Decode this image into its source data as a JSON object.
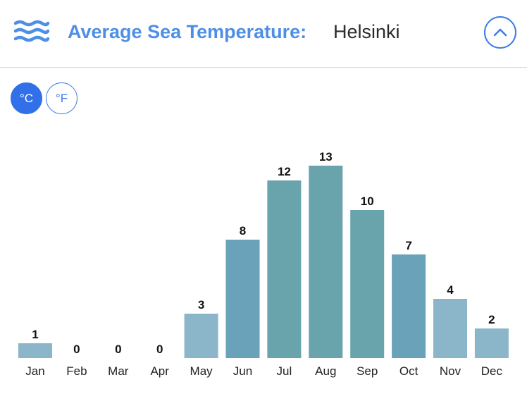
{
  "header": {
    "title": "Average Sea Temperature:",
    "city": "Helsinki",
    "icon": "waves-icon",
    "collapse_icon": "chevron-up-icon"
  },
  "units": {
    "celsius_label": "°C",
    "fahrenheit_label": "°F",
    "selected": "celsius"
  },
  "colors": {
    "accent": "#3270ea",
    "title": "#4d8fe6",
    "bar_warm": "#69a3ab",
    "bar_mid": "#6aa2ba",
    "bar_cool": "#8bb6c9"
  },
  "chart_data": {
    "type": "bar",
    "title": "",
    "xlabel": "",
    "ylabel": "",
    "categories": [
      "Jan",
      "Feb",
      "Mar",
      "Apr",
      "May",
      "Jun",
      "Jul",
      "Aug",
      "Sep",
      "Oct",
      "Nov",
      "Dec"
    ],
    "values": [
      1,
      0,
      0,
      0,
      3,
      8,
      12,
      13,
      10,
      7,
      4,
      2
    ],
    "ylim": [
      0,
      13
    ],
    "grid": false,
    "legend": "none",
    "data_labels": true
  }
}
